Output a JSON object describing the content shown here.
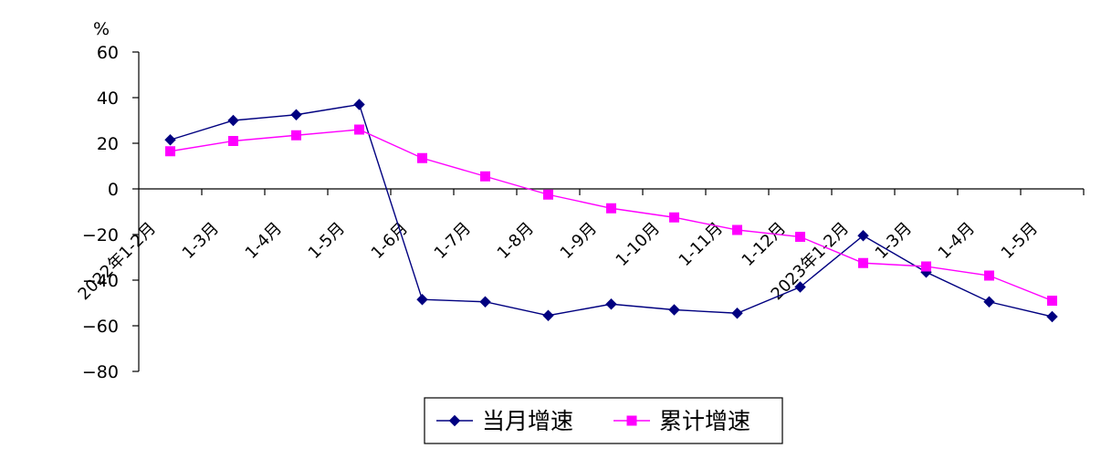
{
  "chart_data": {
    "type": "line",
    "unit_label": "%",
    "categories": [
      "2022年1-2月",
      "1-3月",
      "1-4月",
      "1-5月",
      "1-6月",
      "1-7月",
      "1-8月",
      "1-9月",
      "1-10月",
      "1-11月",
      "1-12月",
      "2023年1-2月",
      "1-3月",
      "1-4月",
      "1-5月"
    ],
    "ylim": [
      -80,
      60
    ],
    "yticks": [
      60,
      40,
      20,
      0,
      -20,
      -40,
      -60,
      -80
    ],
    "series": [
      {
        "name": "当月增速",
        "color": "#000080",
        "marker": "diamond",
        "values": [
          21.5,
          30,
          32.5,
          37,
          -48.5,
          -49.5,
          -55.5,
          -50.5,
          -53,
          -54.5,
          -43,
          -20.5,
          -36.5,
          -49.5,
          -56
        ]
      },
      {
        "name": "累计增速",
        "color": "#FF00FF",
        "marker": "square",
        "values": [
          16.5,
          21,
          23.5,
          26,
          13.5,
          5.5,
          -2.5,
          -8.5,
          -12.5,
          -18,
          -21,
          -32.5,
          -34,
          -38,
          -49
        ]
      }
    ],
    "grid": false,
    "legend_position": "bottom-center"
  }
}
